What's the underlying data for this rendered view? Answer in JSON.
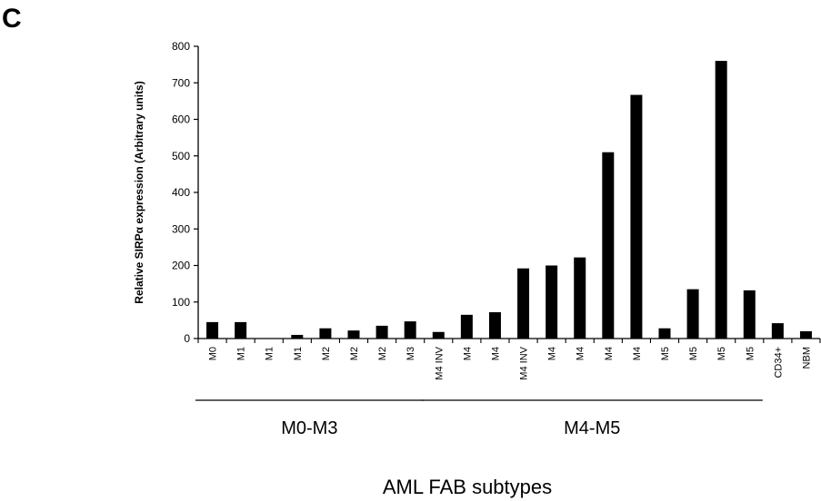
{
  "panel_label": "C",
  "chart_data": {
    "type": "bar",
    "title": "",
    "ylabel": "Relative SIRPα expression (Arbitrary units)",
    "xlabel": "AML FAB subtypes",
    "ylim": [
      0,
      800
    ],
    "yticks": [
      0,
      100,
      200,
      300,
      400,
      500,
      600,
      700,
      800
    ],
    "grid": false,
    "bar_color": "#000000",
    "categories": [
      "M0",
      "M1",
      "M1",
      "M1",
      "M2",
      "M2",
      "M2",
      "M3",
      "M4 INV",
      "M4",
      "M4",
      "M4 INV",
      "M4",
      "M4",
      "M4",
      "M4",
      "M5",
      "M5",
      "M5",
      "M5",
      "CD34+",
      "NBM"
    ],
    "values": [
      45,
      45,
      0,
      10,
      28,
      22,
      35,
      47,
      18,
      65,
      72,
      192,
      200,
      222,
      510,
      667,
      28,
      135,
      760,
      132,
      42,
      20
    ],
    "groups": [
      {
        "label": "M0-M3",
        "start": 0,
        "end": 7
      },
      {
        "label": "M4-M5",
        "start": 8,
        "end": 19
      }
    ]
  }
}
